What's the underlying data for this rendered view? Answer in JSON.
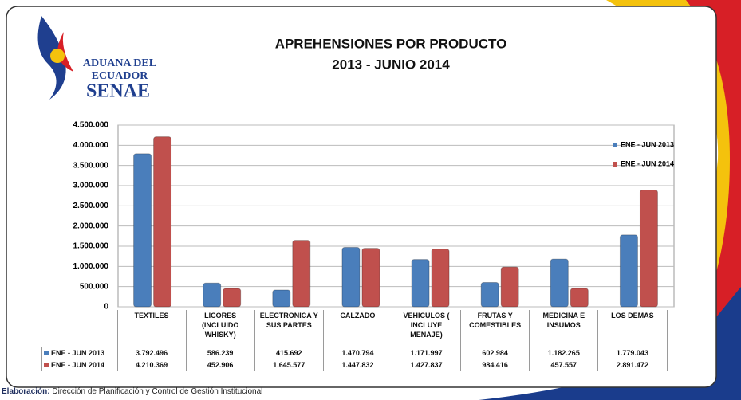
{
  "logo": {
    "line1": "ADUANA DEL",
    "line2": "ECUADOR",
    "line3": "SENAE"
  },
  "footer": {
    "label": "Elaboración:",
    "text": "Dirección de Planificación y Control de Gestión Institucional"
  },
  "chart_data": {
    "type": "bar",
    "title": "APREHENSIONES POR PRODUCTO",
    "subtitle": "2013 - JUNIO 2014",
    "categories": [
      "TEXTILES",
      "LICORES (INCLUIDO WHISKY)",
      "ELECTRONICA Y SUS PARTES",
      "CALZADO",
      "VEHICULOS ( INCLUYE MENAJE)",
      "FRUTAS Y COMESTIBLES",
      "MEDICINA E INSUMOS",
      "LOS DEMAS"
    ],
    "series": [
      {
        "name": "ENE - JUN 2013",
        "color": "#4a7ebb",
        "values": [
          3792496,
          586239,
          415692,
          1470794,
          1171997,
          602984,
          1182265,
          1779043
        ],
        "value_labels": [
          "3.792.496",
          "586.239",
          "415.692",
          "1.470.794",
          "1.171.997",
          "602.984",
          "1.182.265",
          "1.779.043"
        ]
      },
      {
        "name": "ENE - JUN 2014",
        "color": "#c0504d",
        "values": [
          4210369,
          452906,
          1645577,
          1447832,
          1427837,
          984416,
          457557,
          2891472
        ],
        "value_labels": [
          "4.210.369",
          "452.906",
          "1.645.577",
          "1.447.832",
          "1.427.837",
          "984.416",
          "457.557",
          "2.891.472"
        ]
      }
    ],
    "ylim": [
      0,
      4500000
    ],
    "yticks": [
      0,
      {
        "value": 500000,
        "label": "500.000"
      },
      {
        "value": 1000000,
        "label": "1.000.000"
      },
      {
        "value": 1500000,
        "label": "1.500.000"
      },
      {
        "value": 2000000,
        "label": "2.000.000"
      },
      {
        "value": 2500000,
        "label": "2.500.000"
      },
      {
        "value": 3000000,
        "label": "3.000.000"
      },
      {
        "value": 3500000,
        "label": "3.500.000"
      },
      {
        "value": 4000000,
        "label": "4.000.000"
      },
      {
        "value": 4500000,
        "label": "4.500.000"
      }
    ],
    "grid": true,
    "legend": "right"
  }
}
